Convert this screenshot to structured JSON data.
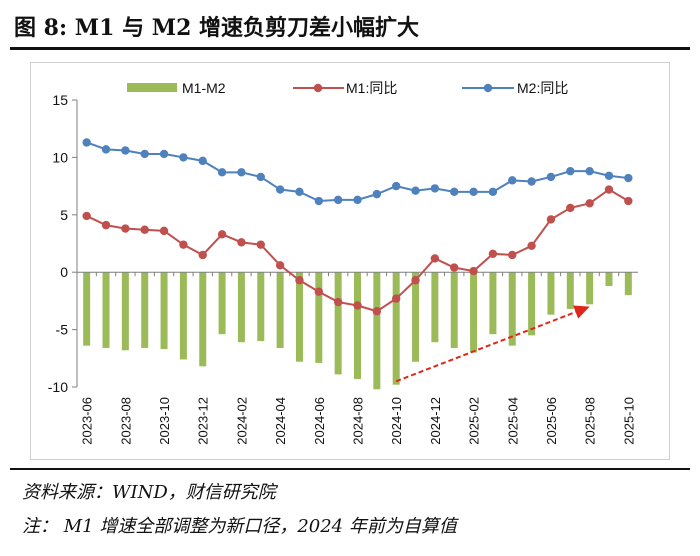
{
  "header": {
    "title": "图 8:  M1 与 M2 增速负剪刀差小幅扩大"
  },
  "footer": {
    "source": "资料来源：WIND，财信研究院",
    "note": "注：  M1 增速全部调整为新口径，2024 年前为自算值"
  },
  "colors": {
    "bar": "#9bbb59",
    "m1": "#c0504d",
    "m2": "#4f81bd",
    "arrow": "#e0251b"
  },
  "chart_data": {
    "type": "bar",
    "categories": [
      "2023-06",
      "2023-07",
      "2023-08",
      "2023-09",
      "2023-10",
      "2023-11",
      "2023-12",
      "2024-01",
      "2024-02",
      "2024-03",
      "2024-04",
      "2024-05",
      "2024-06",
      "2024-07",
      "2024-08",
      "2024-09",
      "2024-10",
      "2024-11",
      "2024-12",
      "2025-01",
      "2025-02",
      "2025-03",
      "2025-04",
      "2025-05",
      "2025-06",
      "2025-07",
      "2025-08",
      "2025-09",
      "2025-10"
    ],
    "tick_labels": [
      "2023-06",
      "2023-08",
      "2023-10",
      "2023-12",
      "2024-02",
      "2024-04",
      "2024-06",
      "2024-08",
      "2024-10",
      "2024-12",
      "2025-02",
      "2025-04",
      "2025-06",
      "2025-08",
      "2025-10"
    ],
    "series": [
      {
        "name": "M1-M2",
        "type": "bar",
        "values": [
          -6.4,
          -6.6,
          -6.8,
          -6.6,
          -6.7,
          -7.6,
          -8.2,
          -5.4,
          -6.1,
          -6.0,
          -6.6,
          -7.8,
          -7.9,
          -8.9,
          -9.3,
          -10.2,
          -9.8,
          -7.8,
          -6.1,
          -6.6,
          -7.0,
          -5.4,
          -6.4,
          -5.5,
          -3.7,
          -3.2,
          -2.8,
          -1.2,
          -2.0
        ]
      },
      {
        "name": "M1:同比",
        "type": "line",
        "values": [
          4.9,
          4.1,
          3.8,
          3.7,
          3.6,
          2.4,
          1.5,
          3.3,
          2.6,
          2.4,
          0.6,
          -0.7,
          -1.7,
          -2.6,
          -2.9,
          -3.4,
          -2.3,
          -0.7,
          1.2,
          0.4,
          0.1,
          1.6,
          1.5,
          2.3,
          4.6,
          5.6,
          6.0,
          7.2,
          6.2
        ]
      },
      {
        "name": "M2:同比",
        "type": "line",
        "values": [
          11.3,
          10.7,
          10.6,
          10.3,
          10.3,
          10.0,
          9.7,
          8.7,
          8.7,
          8.3,
          7.2,
          7.0,
          6.2,
          6.3,
          6.3,
          6.8,
          7.5,
          7.1,
          7.3,
          7.0,
          7.0,
          7.0,
          8.0,
          7.9,
          8.3,
          8.8,
          8.8,
          8.4,
          8.2
        ]
      }
    ],
    "ylim": [
      -10,
      15
    ],
    "yticks": [
      -10,
      -5,
      0,
      5,
      10,
      15
    ],
    "legend_position": "top",
    "grid": false,
    "annotation": {
      "type": "arrow",
      "from": [
        "2024-10",
        -9.5
      ],
      "to": [
        "2025-08",
        -3.0
      ]
    }
  }
}
